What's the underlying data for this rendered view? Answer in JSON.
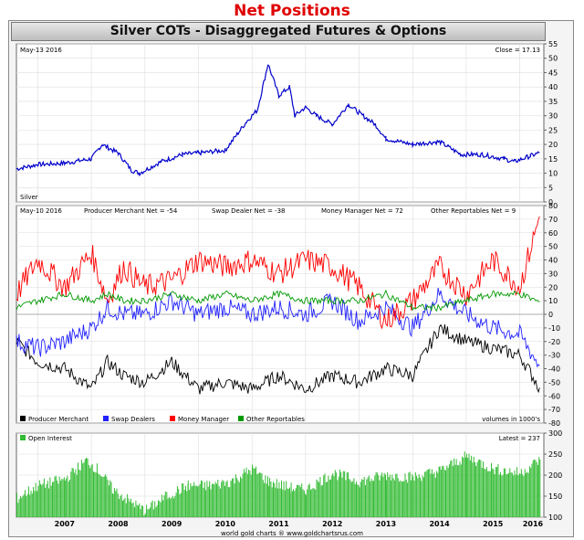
{
  "page_title": "Net Positions",
  "chart_title": "Silver COTs - Disaggregated Futures & Options",
  "footer": "world gold charts ® www.goldchartsrus.com",
  "x_axis": {
    "years": [
      "2007",
      "2008",
      "2009",
      "2010",
      "2011",
      "2012",
      "2013",
      "2014",
      "2015",
      "2016"
    ]
  },
  "colors": {
    "price": "#0000cc",
    "producer": "#000000",
    "swap": "#2222ff",
    "money": "#ff0000",
    "other": "#009900",
    "oi": "#33bb33",
    "title_red": "#e00000"
  },
  "chart_data": [
    {
      "type": "line",
      "panel": "price",
      "date_label": "May-13 2016",
      "close_label": "Close = 17.13",
      "series_label": "Silver",
      "ylim": [
        0,
        55
      ],
      "yticks": [
        0,
        5,
        10,
        15,
        20,
        25,
        30,
        35,
        40,
        45,
        50,
        55
      ],
      "x": [
        2006.6,
        2007.0,
        2007.5,
        2008.0,
        2008.2,
        2008.5,
        2008.75,
        2008.9,
        2009.3,
        2009.7,
        2010.0,
        2010.5,
        2010.9,
        2011.1,
        2011.3,
        2011.5,
        2011.7,
        2011.8,
        2012.0,
        2012.2,
        2012.5,
        2012.8,
        2013.0,
        2013.3,
        2013.5,
        2014.0,
        2014.5,
        2014.9,
        2015.3,
        2015.7,
        2015.9,
        2016.2,
        2016.37
      ],
      "series": [
        {
          "name": "Silver",
          "values": [
            11.5,
            13,
            13.5,
            15,
            20,
            17,
            11,
            10,
            14,
            16.5,
            17,
            18,
            28,
            32,
            48,
            37,
            40,
            30,
            33,
            30,
            27,
            34,
            31,
            27,
            22,
            20,
            21,
            16.5,
            16.5,
            15,
            14,
            16,
            17.13
          ]
        }
      ]
    },
    {
      "type": "line",
      "panel": "net_positions",
      "date_label": "May-10 2016",
      "ylim": [
        -80,
        80
      ],
      "yticks": [
        -80,
        -70,
        -60,
        -50,
        -40,
        -30,
        -20,
        -10,
        0,
        10,
        20,
        30,
        40,
        50,
        60,
        70,
        80
      ],
      "labels": {
        "producer": "Producer Merchant Net = -54",
        "swap": "Swap Dealer Net = -38",
        "money": "Money Manager Net = 72",
        "other": "Other Reportables Net = 9"
      },
      "legend": [
        "Producer Merchant",
        "Swap Dealers",
        "Money Manager",
        "Other Reportables"
      ],
      "units_note": "volumes in 1000's",
      "x": [
        2006.6,
        2007.0,
        2007.5,
        2008.0,
        2008.3,
        2008.6,
        2009.0,
        2009.5,
        2010.0,
        2010.5,
        2011.0,
        2011.5,
        2012.0,
        2012.5,
        2013.0,
        2013.5,
        2014.0,
        2014.5,
        2015.0,
        2015.5,
        2016.0,
        2016.37
      ],
      "series": [
        {
          "name": "Producer Merchant",
          "values": [
            -20,
            -35,
            -40,
            -55,
            -35,
            -45,
            -50,
            -35,
            -55,
            -50,
            -55,
            -45,
            -55,
            -45,
            -50,
            -40,
            -45,
            -10,
            -20,
            -25,
            -30,
            -54
          ]
        },
        {
          "name": "Swap Dealers",
          "values": [
            -20,
            -25,
            -20,
            -10,
            5,
            0,
            0,
            10,
            0,
            5,
            0,
            5,
            0,
            10,
            -5,
            5,
            -10,
            15,
            0,
            -10,
            -15,
            -38
          ]
        },
        {
          "name": "Money Manager",
          "values": [
            15,
            40,
            20,
            45,
            10,
            35,
            20,
            25,
            40,
            35,
            40,
            30,
            40,
            35,
            20,
            -5,
            10,
            35,
            15,
            40,
            20,
            72
          ]
        },
        {
          "name": "Other Reportables",
          "values": [
            5,
            10,
            15,
            10,
            15,
            10,
            10,
            15,
            10,
            15,
            10,
            15,
            10,
            10,
            10,
            15,
            5,
            5,
            10,
            15,
            15,
            9
          ]
        }
      ]
    },
    {
      "type": "bar",
      "panel": "open_interest",
      "legend": [
        "Open Interest"
      ],
      "latest_label": "Latest = 237",
      "ylim": [
        100,
        300
      ],
      "yticks": [
        100,
        150,
        200,
        250,
        300
      ],
      "x": [
        2006.6,
        2007.0,
        2007.5,
        2007.9,
        2008.1,
        2008.4,
        2008.8,
        2009.0,
        2009.4,
        2009.8,
        2010.2,
        2010.6,
        2011.0,
        2011.3,
        2011.7,
        2012.0,
        2012.5,
        2013.0,
        2013.5,
        2014.0,
        2014.5,
        2015.0,
        2015.5,
        2016.0,
        2016.37
      ],
      "series": [
        {
          "name": "Open Interest",
          "values": [
            145,
            175,
            190,
            235,
            215,
            165,
            130,
            115,
            150,
            175,
            175,
            185,
            215,
            185,
            170,
            165,
            205,
            185,
            200,
            195,
            210,
            245,
            215,
            205,
            237
          ]
        }
      ]
    }
  ]
}
